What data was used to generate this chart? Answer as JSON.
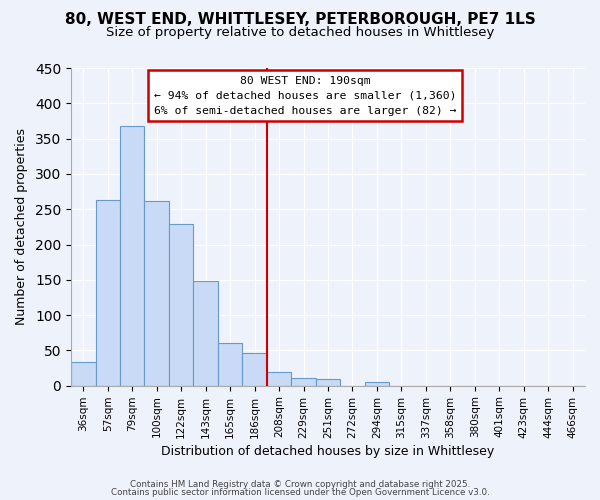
{
  "title": "80, WEST END, WHITTLESEY, PETERBOROUGH, PE7 1LS",
  "subtitle": "Size of property relative to detached houses in Whittlesey",
  "xlabel": "Distribution of detached houses by size in Whittlesey",
  "ylabel": "Number of detached properties",
  "bar_labels": [
    "36sqm",
    "57sqm",
    "79sqm",
    "100sqm",
    "122sqm",
    "143sqm",
    "165sqm",
    "186sqm",
    "208sqm",
    "229sqm",
    "251sqm",
    "272sqm",
    "294sqm",
    "315sqm",
    "337sqm",
    "358sqm",
    "380sqm",
    "401sqm",
    "423sqm",
    "444sqm",
    "466sqm"
  ],
  "bar_values": [
    33,
    263,
    368,
    261,
    229,
    148,
    61,
    46,
    20,
    11,
    10,
    0,
    5,
    0,
    0,
    0,
    0,
    0,
    0,
    0,
    0
  ],
  "bar_color": "#c8daf5",
  "bar_edge_color": "#6699cc",
  "vline_x": 7.5,
  "vline_color": "#cc0000",
  "annotation_title": "80 WEST END: 190sqm",
  "annotation_line1": "← 94% of detached houses are smaller (1,360)",
  "annotation_line2": "6% of semi-detached houses are larger (82) →",
  "annotation_box_color": "#ffffff",
  "annotation_box_edge": "#cc0000",
  "ylim": [
    0,
    450
  ],
  "yticks": [
    0,
    50,
    100,
    150,
    200,
    250,
    300,
    350,
    400,
    450
  ],
  "background_color": "#eef2fb",
  "footer1": "Contains HM Land Registry data © Crown copyright and database right 2025.",
  "footer2": "Contains public sector information licensed under the Open Government Licence v3.0.",
  "title_fontsize": 11,
  "subtitle_fontsize": 9.5
}
